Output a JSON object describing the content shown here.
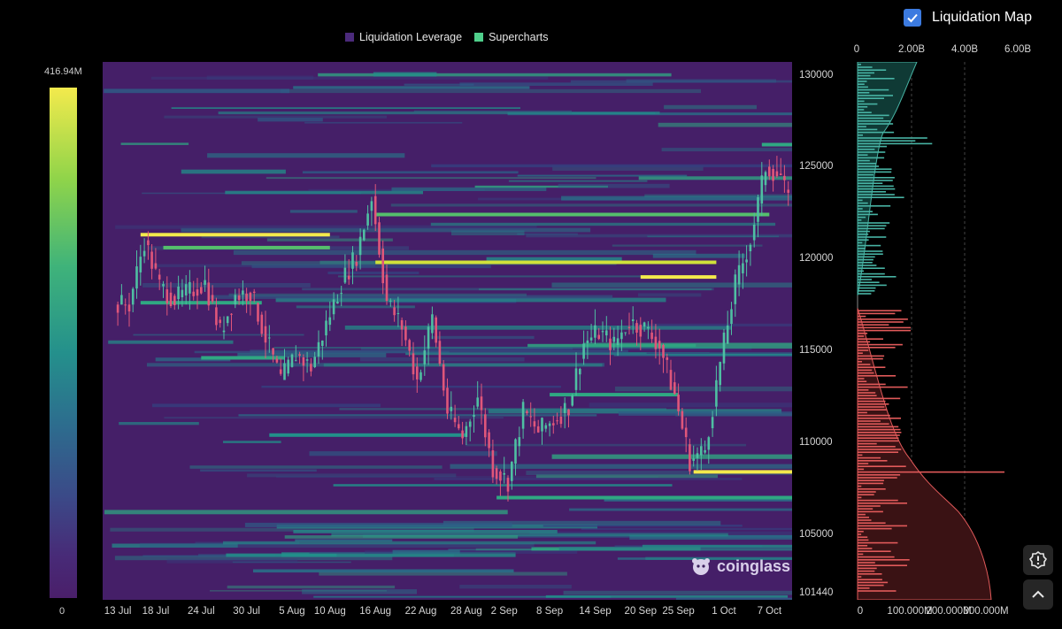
{
  "legend": {
    "items": [
      {
        "label": "Liquidation Leverage",
        "color": "#4b2a7b"
      },
      {
        "label": "Supercharts",
        "color": "#4fcf8b"
      }
    ]
  },
  "toggle": {
    "label": "Liquidation Map",
    "checked": true
  },
  "colorbar": {
    "max": "416.94M",
    "min": "0"
  },
  "profile_top_ticks": [
    "0",
    "2.00B",
    "4.00B",
    "6.00B"
  ],
  "profile_bottom_ticks": [
    "0",
    "100.000M",
    "200.000M",
    "300.000M"
  ],
  "logo_text": "coinglass",
  "chart_data": {
    "type": "heatmap",
    "x_labels": [
      "13 Jul",
      "18 Jul",
      "24 Jul",
      "30 Jul",
      "5 Aug",
      "10 Aug",
      "16 Aug",
      "22 Aug",
      "28 Aug",
      "2 Sep",
      "8 Sep",
      "14 Sep",
      "20 Sep",
      "25 Sep",
      "1 Oct",
      "7 Oct"
    ],
    "y_labels": [
      "130000",
      "125000",
      "120000",
      "115000",
      "110000",
      "105000",
      "101440"
    ],
    "ylim": [
      101440,
      130700
    ],
    "price_series": [
      [
        "13 Jul",
        117500
      ],
      [
        "15 Jul",
        121000
      ],
      [
        "17 Jul",
        118500
      ],
      [
        "19 Jul",
        117800
      ],
      [
        "21 Jul",
        118200
      ],
      [
        "23 Jul",
        118700
      ],
      [
        "25 Jul",
        116000
      ],
      [
        "27 Jul",
        118000
      ],
      [
        "29 Jul",
        118200
      ],
      [
        "31 Jul",
        115700
      ],
      [
        "2 Aug",
        113400
      ],
      [
        "4 Aug",
        114800
      ],
      [
        "6 Aug",
        114100
      ],
      [
        "8 Aug",
        116400
      ],
      [
        "10 Aug",
        118700
      ],
      [
        "12 Aug",
        120200
      ],
      [
        "14 Aug",
        123400
      ],
      [
        "16 Aug",
        117700
      ],
      [
        "18 Aug",
        116300
      ],
      [
        "20 Aug",
        113400
      ],
      [
        "22 Aug",
        116800
      ],
      [
        "24 Aug",
        111700
      ],
      [
        "26 Aug",
        110300
      ],
      [
        "28 Aug",
        112500
      ],
      [
        "30 Aug",
        108600
      ],
      [
        "1 Sep",
        107900
      ],
      [
        "3 Sep",
        111700
      ],
      [
        "5 Sep",
        110600
      ],
      [
        "7 Sep",
        111200
      ],
      [
        "9 Sep",
        112000
      ],
      [
        "11 Sep",
        115400
      ],
      [
        "13 Sep",
        116000
      ],
      [
        "15 Sep",
        115300
      ],
      [
        "17 Sep",
        116600
      ],
      [
        "19 Sep",
        116200
      ],
      [
        "21 Sep",
        115300
      ],
      [
        "23 Sep",
        112600
      ],
      [
        "25 Sep",
        109000
      ],
      [
        "27 Sep",
        109600
      ],
      [
        "29 Sep",
        114300
      ],
      [
        "1 Oct",
        118600
      ],
      [
        "3 Oct",
        121000
      ],
      [
        "5 Oct",
        125000
      ],
      [
        "7 Oct",
        124500
      ],
      [
        "9 Oct",
        121500
      ],
      [
        "10 Oct",
        118000
      ]
    ],
    "liquidation_bands": [
      {
        "price": 121300,
        "start": "16 Jul",
        "end": "10 Aug",
        "intensity": 0.95
      },
      {
        "price": 120600,
        "start": "19 Jul",
        "end": "10 Aug",
        "intensity": 0.7
      },
      {
        "price": 119800,
        "start": "16 Aug",
        "end": "30 Sep",
        "intensity": 0.85
      },
      {
        "price": 119000,
        "start": "20 Sep",
        "end": "30 Sep",
        "intensity": 1.0
      },
      {
        "price": 122400,
        "start": "16 Aug",
        "end": "7 Oct",
        "intensity": 0.7
      },
      {
        "price": 126200,
        "start": "6 Oct",
        "end": "10 Oct",
        "intensity": 0.6
      },
      {
        "price": 108400,
        "start": "27 Sep",
        "end": "10 Oct",
        "intensity": 1.0
      },
      {
        "price": 107000,
        "start": "1 Sep",
        "end": "10 Oct",
        "intensity": 0.55
      },
      {
        "price": 112600,
        "start": "8 Sep",
        "end": "25 Sep",
        "intensity": 0.6
      },
      {
        "price": 117600,
        "start": "16 Jul",
        "end": "1 Aug",
        "intensity": 0.55
      },
      {
        "price": 114600,
        "start": "24 Jul",
        "end": "4 Aug",
        "intensity": 0.5
      },
      {
        "price": 110400,
        "start": "2 Aug",
        "end": "28 Aug",
        "intensity": 0.45
      }
    ],
    "profile": {
      "top_axis": {
        "unit": "cumulative",
        "ticks": [
          "0",
          "2.00B",
          "4.00B",
          "6.00B"
        ]
      },
      "bottom_axis": {
        "unit": "per-level",
        "ticks": [
          "0",
          "100.000M",
          "200.000M",
          "300.000M"
        ]
      },
      "short_side": {
        "range": [
          118000,
          130700
        ],
        "color": "#48b3a4"
      },
      "long_side": {
        "range": [
          101440,
          117300
        ],
        "color": "#e15a5a"
      }
    }
  }
}
